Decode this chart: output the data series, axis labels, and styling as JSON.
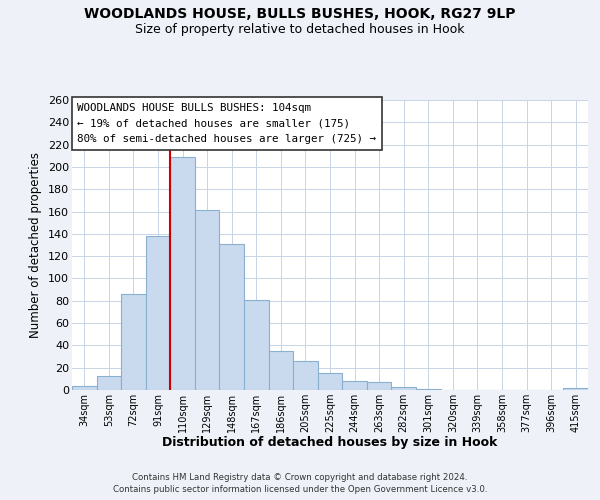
{
  "title": "WOODLANDS HOUSE, BULLS BUSHES, HOOK, RG27 9LP",
  "subtitle": "Size of property relative to detached houses in Hook",
  "xlabel": "Distribution of detached houses by size in Hook",
  "ylabel": "Number of detached properties",
  "bar_labels": [
    "34sqm",
    "53sqm",
    "72sqm",
    "91sqm",
    "110sqm",
    "129sqm",
    "148sqm",
    "167sqm",
    "186sqm",
    "205sqm",
    "225sqm",
    "244sqm",
    "263sqm",
    "282sqm",
    "301sqm",
    "320sqm",
    "339sqm",
    "358sqm",
    "377sqm",
    "396sqm",
    "415sqm"
  ],
  "bar_values": [
    4,
    13,
    86,
    138,
    209,
    161,
    131,
    81,
    35,
    26,
    15,
    8,
    7,
    3,
    1,
    0,
    0,
    0,
    0,
    0,
    2
  ],
  "bar_color": "#c9daee",
  "bar_edge_color": "#8ab0d0",
  "vline_x_index": 3.5,
  "vline_color": "#cc0000",
  "ylim": [
    0,
    260
  ],
  "yticks": [
    0,
    20,
    40,
    60,
    80,
    100,
    120,
    140,
    160,
    180,
    200,
    220,
    240,
    260
  ],
  "annotation_title": "WOODLANDS HOUSE BULLS BUSHES: 104sqm",
  "annotation_line1": "← 19% of detached houses are smaller (175)",
  "annotation_line2": "80% of semi-detached houses are larger (725) →",
  "footer1": "Contains HM Land Registry data © Crown copyright and database right 2024.",
  "footer2": "Contains public sector information licensed under the Open Government Licence v3.0.",
  "background_color": "#eef2f8",
  "plot_bg_color": "#ffffff",
  "grid_color": "#c8d4e4"
}
